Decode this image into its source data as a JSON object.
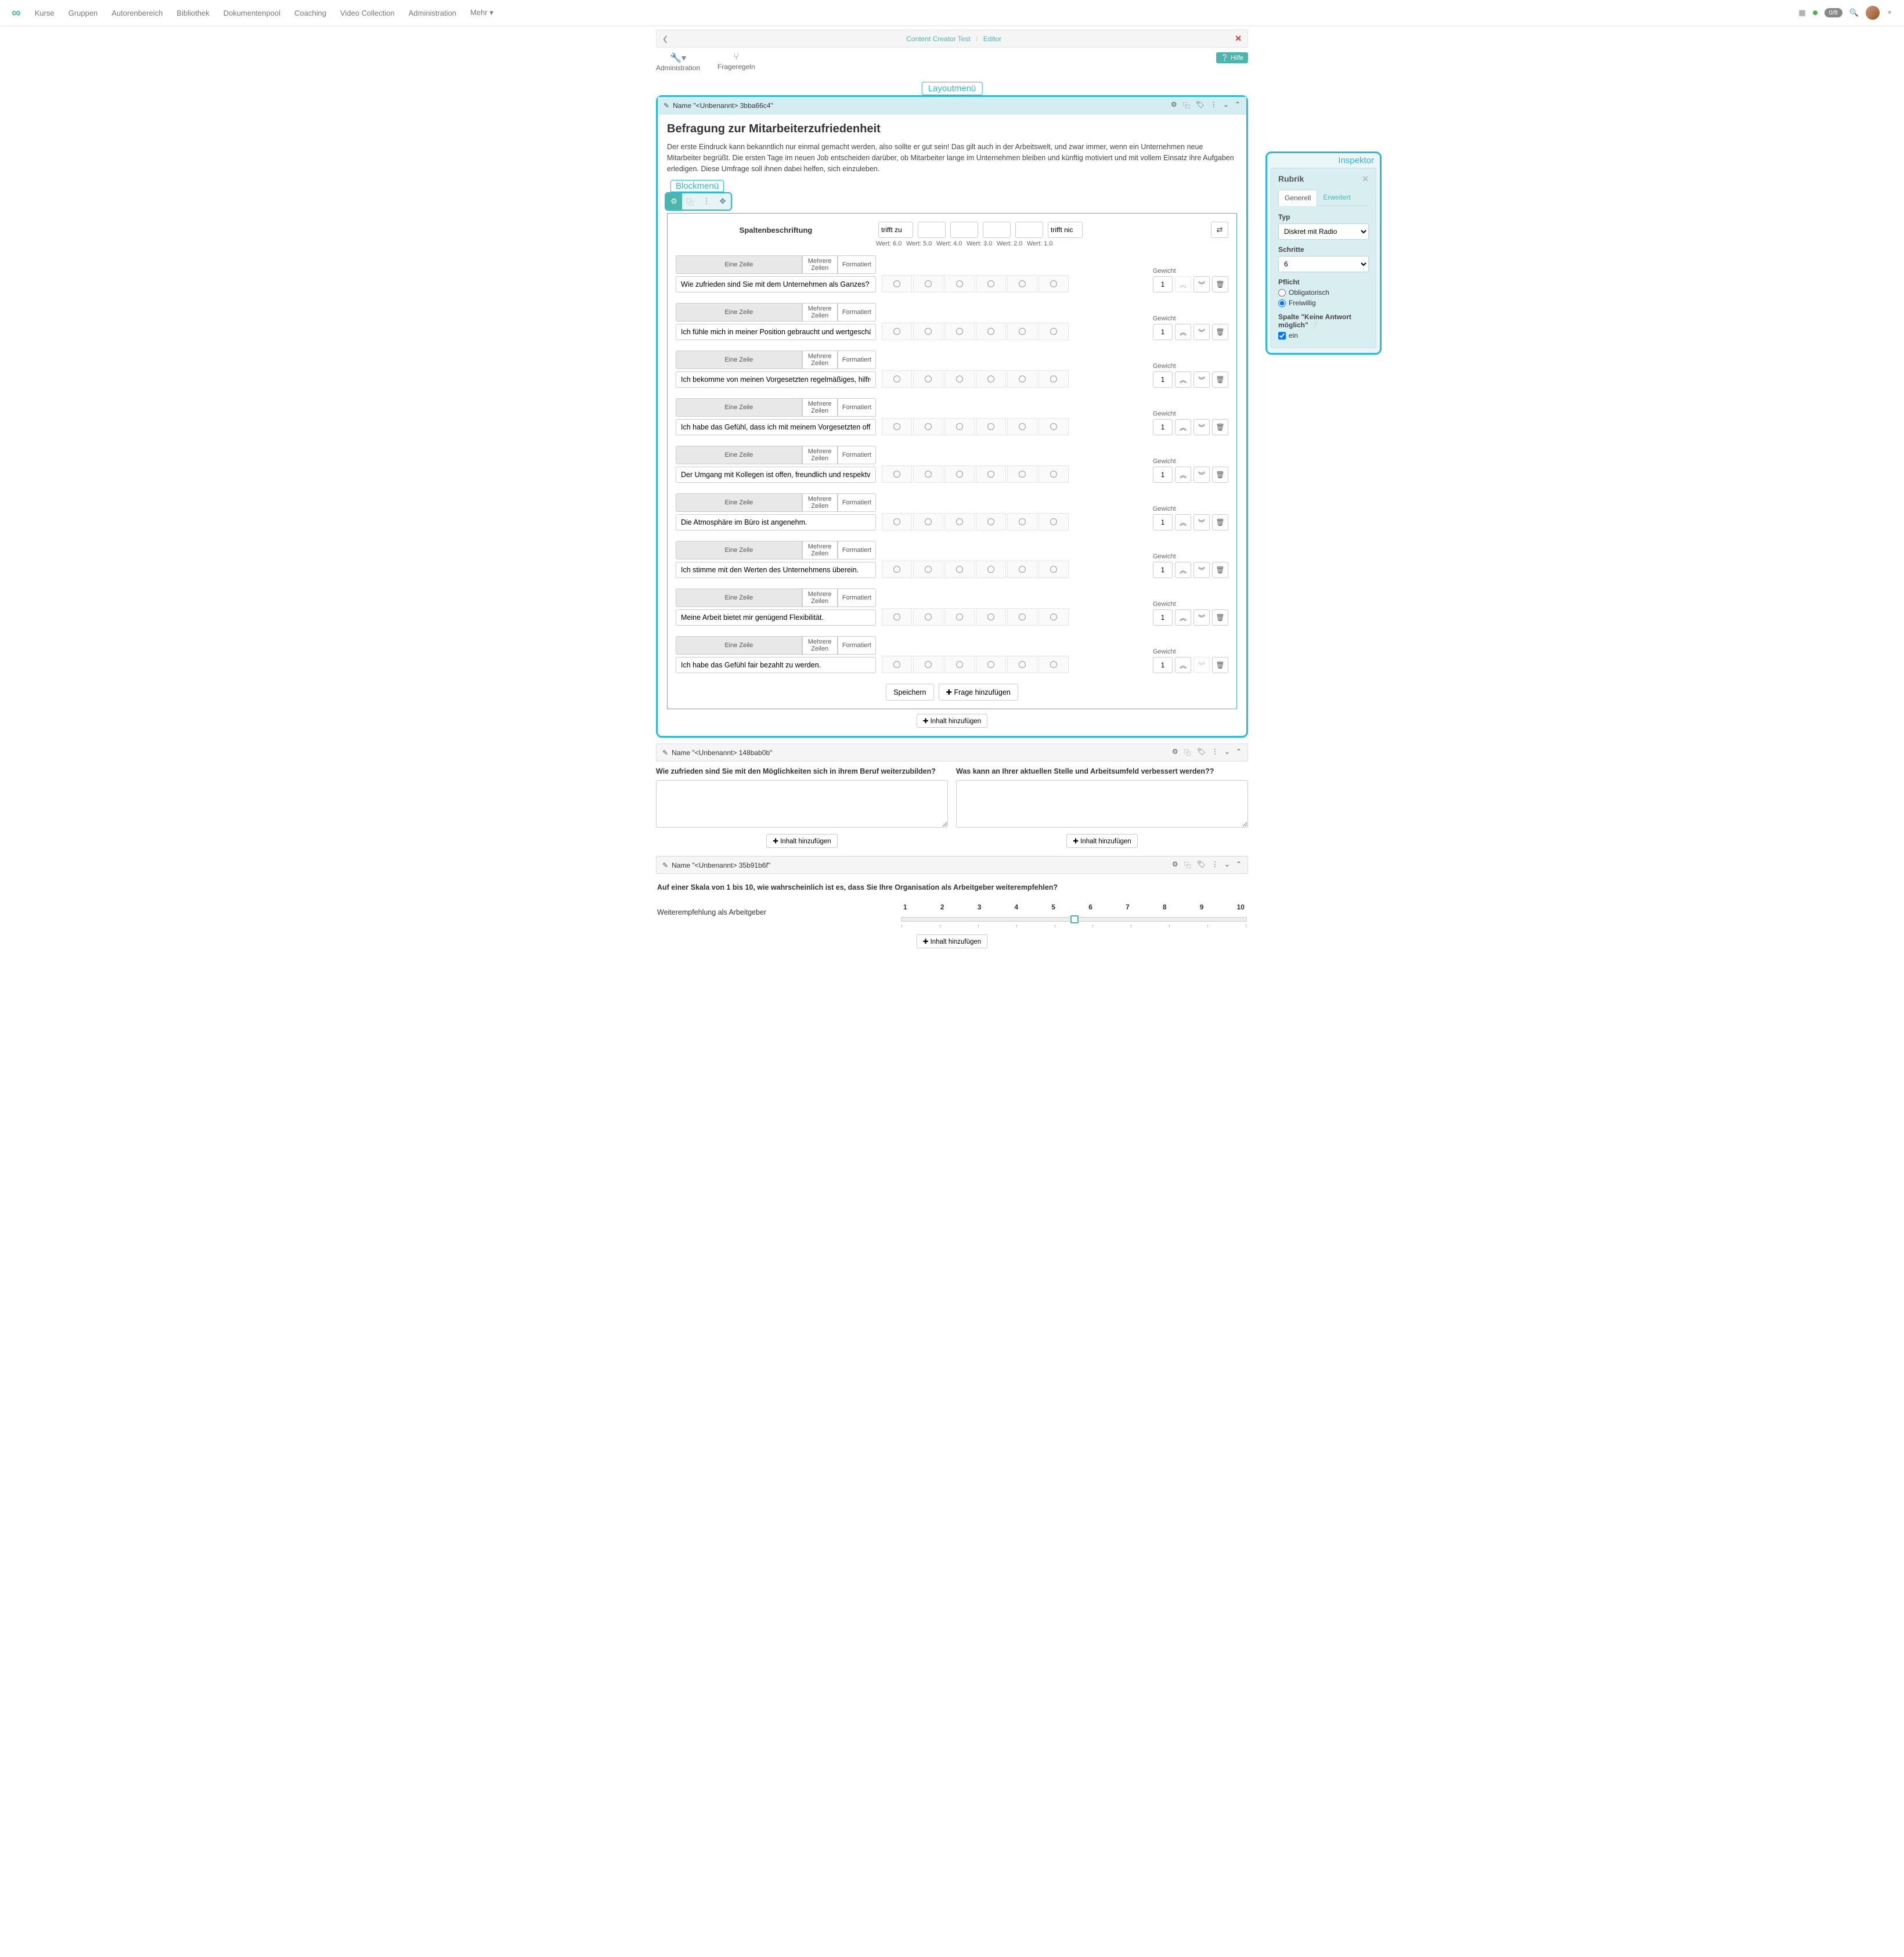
{
  "nav": {
    "items": [
      "Kurse",
      "Gruppen",
      "Autorenbereich",
      "Bibliothek",
      "Dokumentenpool",
      "Coaching",
      "Video Collection",
      "Administration",
      "Mehr"
    ],
    "badge": "0/8"
  },
  "breadcrumb": {
    "a": "Content Creator Test",
    "b": "Editor"
  },
  "toolbar": {
    "admin": "Administration",
    "rules": "Frageregeln",
    "help": "Hilfe"
  },
  "annotations": {
    "layout": "Layoutmenü",
    "block": "Blockmenü",
    "inspector": "Inspektor"
  },
  "section1": {
    "name": "Name \"<Unbenannt> 3bba66c4\""
  },
  "survey": {
    "title": "Befragung zur Mitarbeiterzufriedenheit",
    "intro": "Der erste Eindruck kann bekanntlich nur einmal gemacht werden, also sollte er gut sein! Das gilt auch in der Arbeitswelt, und zwar immer, wenn ein Unternehmen neue Mitarbeiter begrüßt. Die ersten Tage im neuen Job entscheiden darüber, ob Mitarbeiter lange im Unternehmen bleiben und künftig motiviert und mit vollem Einsatz ihre Aufgaben erledigen. Diese Umfrage soll ihnen dabei helfen, sich einzuleben.",
    "colHeading": "Spaltenbeschriftung",
    "colStart": "trifft zu",
    "colEnd": "trifft nic",
    "werts": [
      "Wert: 6.0",
      "Wert: 5.0",
      "Wert: 4.0",
      "Wert: 3.0",
      "Wert: 2.0",
      "Wert: 1.0"
    ],
    "rowTypes": [
      "Eine Zeile",
      "Mehrere Zeilen",
      "Formatiert"
    ],
    "weightLabel": "Gewicht",
    "weightVal": "1",
    "questions": [
      "Wie zufrieden sind Sie mit dem Unternehmen als Ganzes?",
      "Ich fühle mich in meiner Position gebraucht und wertgeschätzt.",
      "Ich bekomme von meinen Vorgesetzten regelmäßiges, hilfreiches Feedback.",
      "Ich habe das Gefühl, dass ich mit meinem Vorgesetzten offen und ehrlich übe",
      "Der Umgang mit Kollegen ist offen, freundlich und respektvoll.",
      "Die Atmosphäre im Büro ist angenehm.",
      "Ich stimme mit den Werten des Unternehmens überein.",
      "Meine Arbeit bietet mir genügend Flexibilität.",
      "Ich habe das Gefühl fair bezahlt zu werden."
    ],
    "save": "Speichern",
    "addQ": "Frage hinzufügen",
    "addContent": "Inhalt hinzufügen"
  },
  "section2": {
    "name": "Name \"<Unbenannt> 148bab0b\"",
    "q1": "Wie zufrieden sind Sie mit den Möglichkeiten sich in ihrem Beruf weiterzubilden?",
    "q2": "Was kann an Ihrer aktuellen Stelle und Arbeitsumfeld verbessert werden??"
  },
  "section3": {
    "name": "Name \"<Unbenannt> 35b91b6f\"",
    "q": "Auf einer Skala von 1 bis 10, wie wahrscheinlich ist es, dass Sie Ihre Organisation als Arbeitgeber weiterempfehlen?",
    "label": "Weiterempfehlung als Arbeitgeber",
    "nums": [
      "1",
      "2",
      "3",
      "4",
      "5",
      "6",
      "7",
      "8",
      "9",
      "10"
    ],
    "thumbPos": "49%"
  },
  "inspector": {
    "title": "Rubrik",
    "tabs": [
      "Generell",
      "Erweitert"
    ],
    "typeLabel": "Typ",
    "typeVal": "Diskret mit Radio",
    "stepsLabel": "Schritte",
    "stepsVal": "6",
    "dutyLabel": "Pflicht",
    "duty1": "Obligatorisch",
    "duty2": "Freiwillig",
    "noAnswerLabel": "Spalte \"Keine Antwort möglich\"",
    "noAnswerVal": "ein"
  }
}
